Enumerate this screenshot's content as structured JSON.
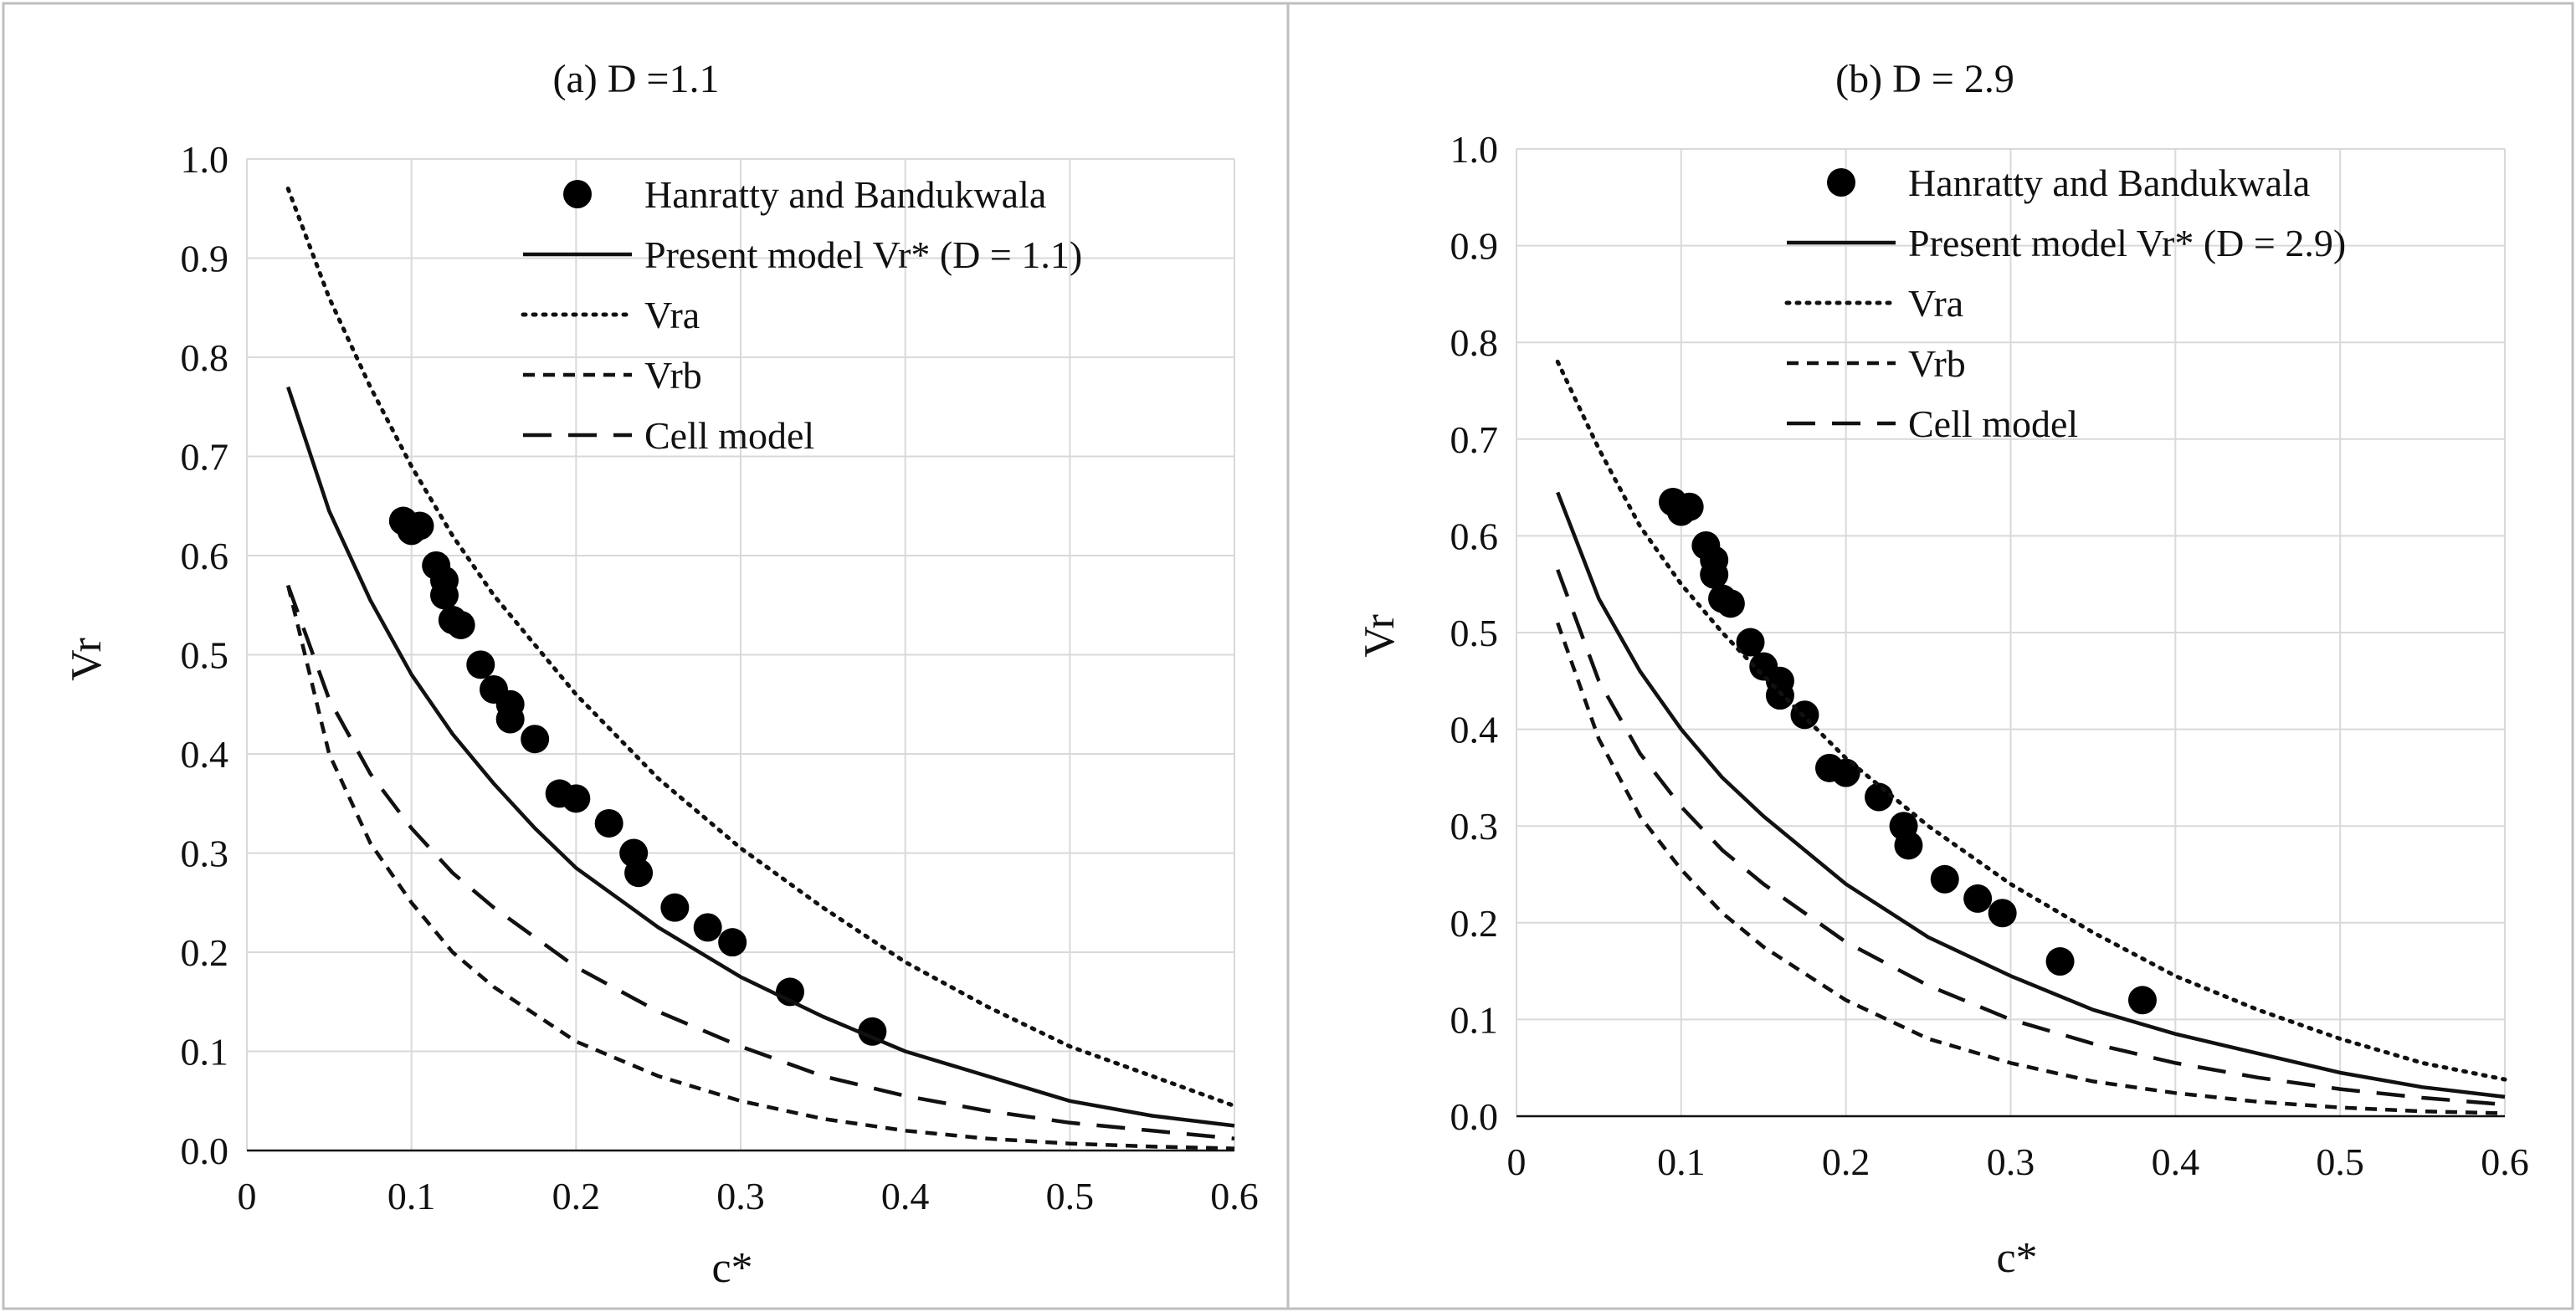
{
  "figure": {
    "colors": {
      "axis": "#111111",
      "grid": "#d9d9d9",
      "border": "#bfbfbf",
      "marker": "#000000"
    }
  },
  "chart_data": [
    {
      "type": "line",
      "title": "(a) D =1.1",
      "xlabel": "c*",
      "ylabel": "Vr",
      "xlim": [
        0,
        0.6
      ],
      "ylim": [
        0,
        1.0
      ],
      "xticks": [
        "0",
        "0.1",
        "0.2",
        "0.3",
        "0.4",
        "0.5",
        "0.6"
      ],
      "yticks": [
        "0.0",
        "0.1",
        "0.2",
        "0.3",
        "0.4",
        "0.5",
        "0.6",
        "0.7",
        "0.8",
        "0.9",
        "1.0"
      ],
      "legend_position": "top-right",
      "series": [
        {
          "name": "Hanratty and Bandukwala",
          "style": "markers",
          "x": [
            0.095,
            0.1,
            0.105,
            0.115,
            0.12,
            0.12,
            0.125,
            0.13,
            0.142,
            0.15,
            0.16,
            0.16,
            0.175,
            0.19,
            0.2,
            0.22,
            0.235,
            0.238,
            0.26,
            0.28,
            0.295,
            0.33,
            0.38
          ],
          "y": [
            0.635,
            0.625,
            0.63,
            0.59,
            0.575,
            0.56,
            0.535,
            0.53,
            0.49,
            0.465,
            0.45,
            0.435,
            0.415,
            0.36,
            0.355,
            0.33,
            0.3,
            0.28,
            0.245,
            0.225,
            0.21,
            0.16,
            0.12
          ]
        },
        {
          "name": "Present model Vr* (D = 1.1)",
          "style": "solid",
          "x": [
            0.025,
            0.05,
            0.075,
            0.1,
            0.125,
            0.15,
            0.175,
            0.2,
            0.25,
            0.3,
            0.35,
            0.4,
            0.45,
            0.5,
            0.55,
            0.6
          ],
          "y": [
            0.77,
            0.645,
            0.555,
            0.48,
            0.42,
            0.37,
            0.325,
            0.285,
            0.225,
            0.175,
            0.135,
            0.1,
            0.075,
            0.05,
            0.035,
            0.025
          ]
        },
        {
          "name": "Vra",
          "style": "dotted",
          "x": [
            0.025,
            0.05,
            0.075,
            0.1,
            0.125,
            0.15,
            0.2,
            0.25,
            0.3,
            0.35,
            0.4,
            0.45,
            0.5,
            0.55,
            0.6
          ],
          "y": [
            0.97,
            0.86,
            0.77,
            0.69,
            0.62,
            0.56,
            0.46,
            0.375,
            0.305,
            0.245,
            0.19,
            0.145,
            0.105,
            0.075,
            0.045
          ]
        },
        {
          "name": "Vrb",
          "style": "short-dash",
          "x": [
            0.025,
            0.05,
            0.075,
            0.1,
            0.125,
            0.15,
            0.2,
            0.25,
            0.3,
            0.35,
            0.4,
            0.45,
            0.5,
            0.55,
            0.6
          ],
          "y": [
            0.57,
            0.4,
            0.31,
            0.25,
            0.2,
            0.165,
            0.11,
            0.075,
            0.05,
            0.032,
            0.02,
            0.012,
            0.007,
            0.004,
            0.002
          ]
        },
        {
          "name": "Cell model",
          "style": "long-dash",
          "x": [
            0.025,
            0.05,
            0.075,
            0.1,
            0.125,
            0.15,
            0.2,
            0.25,
            0.3,
            0.35,
            0.4,
            0.45,
            0.5,
            0.55,
            0.6
          ],
          "y": [
            0.57,
            0.455,
            0.38,
            0.325,
            0.28,
            0.245,
            0.185,
            0.14,
            0.105,
            0.075,
            0.055,
            0.04,
            0.028,
            0.02,
            0.012
          ]
        }
      ]
    },
    {
      "type": "line",
      "title": "(b) D = 2.9",
      "xlabel": "c*",
      "ylabel": "Vr",
      "xlim": [
        0,
        0.6
      ],
      "ylim": [
        0,
        1.0
      ],
      "xticks": [
        "0",
        "0.1",
        "0.2",
        "0.3",
        "0.4",
        "0.5",
        "0.6"
      ],
      "yticks": [
        "0.0",
        "0.1",
        "0.2",
        "0.3",
        "0.4",
        "0.5",
        "0.6",
        "0.7",
        "0.8",
        "0.9",
        "1.0"
      ],
      "legend_position": "top-right",
      "series": [
        {
          "name": "Hanratty and Bandukwala",
          "style": "markers",
          "x": [
            0.095,
            0.1,
            0.105,
            0.115,
            0.12,
            0.12,
            0.125,
            0.13,
            0.142,
            0.15,
            0.16,
            0.16,
            0.175,
            0.19,
            0.2,
            0.22,
            0.235,
            0.238,
            0.26,
            0.28,
            0.295,
            0.33,
            0.38
          ],
          "y": [
            0.635,
            0.625,
            0.63,
            0.59,
            0.575,
            0.56,
            0.535,
            0.53,
            0.49,
            0.465,
            0.45,
            0.435,
            0.415,
            0.36,
            0.355,
            0.33,
            0.3,
            0.28,
            0.245,
            0.225,
            0.21,
            0.16,
            0.12
          ]
        },
        {
          "name": "Present model Vr* (D = 2.9)",
          "style": "solid",
          "x": [
            0.025,
            0.05,
            0.075,
            0.1,
            0.125,
            0.15,
            0.175,
            0.2,
            0.25,
            0.3,
            0.35,
            0.4,
            0.45,
            0.5,
            0.55,
            0.6
          ],
          "y": [
            0.645,
            0.535,
            0.46,
            0.4,
            0.35,
            0.31,
            0.275,
            0.24,
            0.185,
            0.145,
            0.11,
            0.085,
            0.065,
            0.045,
            0.03,
            0.02
          ]
        },
        {
          "name": "Vra",
          "style": "dotted",
          "x": [
            0.025,
            0.05,
            0.075,
            0.1,
            0.125,
            0.15,
            0.2,
            0.25,
            0.3,
            0.35,
            0.4,
            0.45,
            0.5,
            0.55,
            0.6
          ],
          "y": [
            0.78,
            0.69,
            0.61,
            0.55,
            0.5,
            0.455,
            0.37,
            0.3,
            0.24,
            0.19,
            0.145,
            0.11,
            0.08,
            0.055,
            0.038
          ]
        },
        {
          "name": "Vrb",
          "style": "short-dash",
          "x": [
            0.025,
            0.05,
            0.075,
            0.1,
            0.125,
            0.15,
            0.2,
            0.25,
            0.3,
            0.35,
            0.4,
            0.45,
            0.5,
            0.55,
            0.6
          ],
          "y": [
            0.51,
            0.39,
            0.31,
            0.255,
            0.21,
            0.175,
            0.12,
            0.08,
            0.055,
            0.036,
            0.024,
            0.015,
            0.009,
            0.005,
            0.003
          ]
        },
        {
          "name": "Cell model",
          "style": "long-dash",
          "x": [
            0.025,
            0.05,
            0.075,
            0.1,
            0.125,
            0.15,
            0.2,
            0.25,
            0.3,
            0.35,
            0.4,
            0.45,
            0.5,
            0.55,
            0.6
          ],
          "y": [
            0.565,
            0.45,
            0.375,
            0.32,
            0.275,
            0.24,
            0.18,
            0.135,
            0.1,
            0.075,
            0.055,
            0.04,
            0.028,
            0.019,
            0.012
          ]
        }
      ]
    }
  ]
}
